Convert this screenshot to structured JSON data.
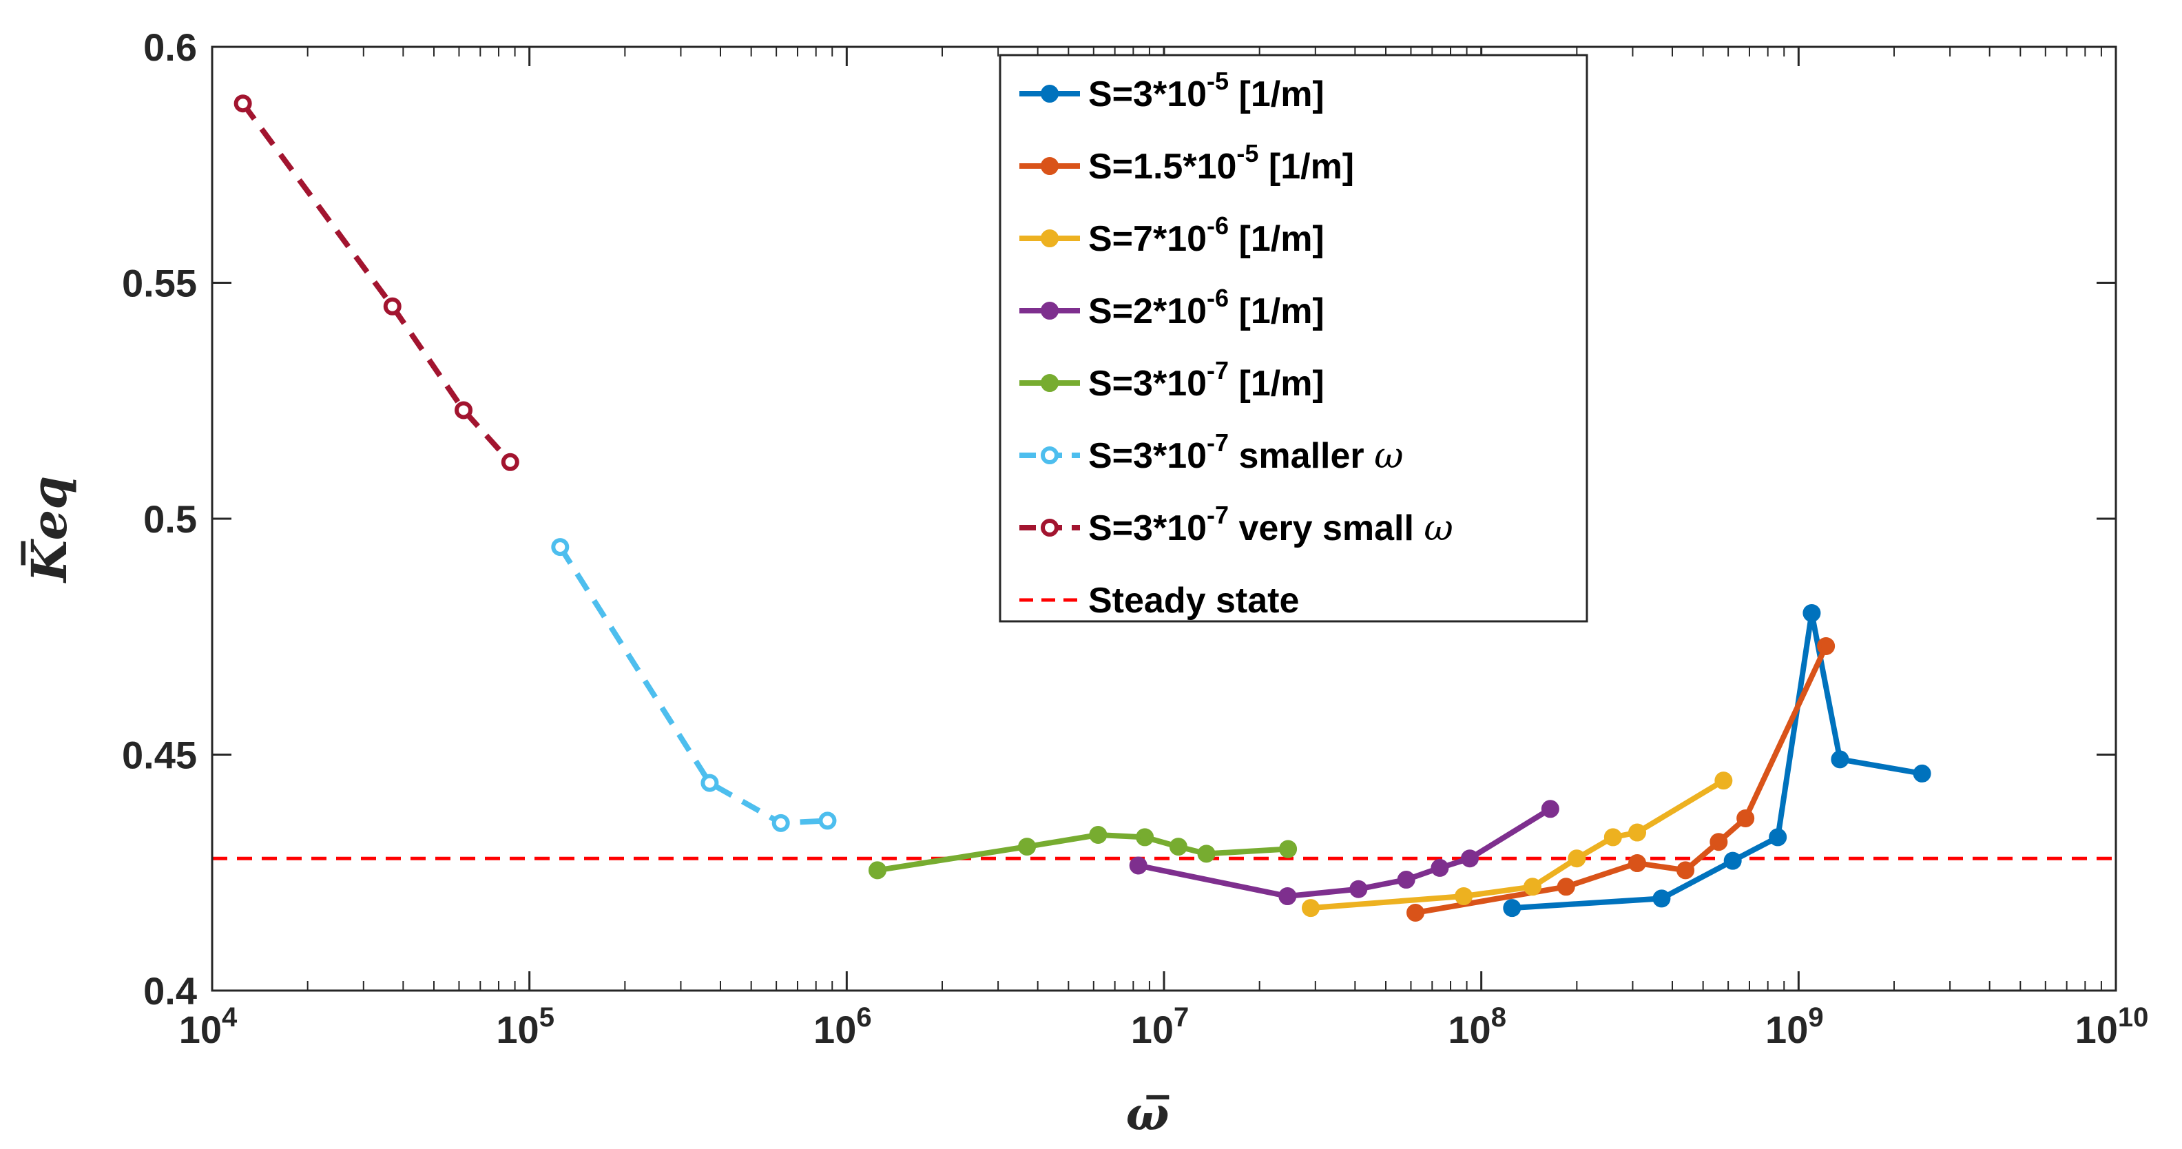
{
  "chart_data": {
    "type": "line",
    "xscale": "log",
    "xlim": [
      10000,
      10000000000
    ],
    "ylim": [
      0.4,
      0.6
    ],
    "grid": false,
    "legend_position": "top-right",
    "xlabel": "ω̅",
    "ylabel": "K̅eq",
    "x_ticks": [
      {
        "base": "10",
        "exp": "4",
        "value": 10000
      },
      {
        "base": "10",
        "exp": "5",
        "value": 100000
      },
      {
        "base": "10",
        "exp": "6",
        "value": 1000000
      },
      {
        "base": "10",
        "exp": "7",
        "value": 10000000
      },
      {
        "base": "10",
        "exp": "8",
        "value": 100000000
      },
      {
        "base": "10",
        "exp": "9",
        "value": 1000000000
      },
      {
        "base": "10",
        "exp": "10",
        "value": 10000000000
      }
    ],
    "y_ticks": [
      {
        "label": "0.4",
        "value": 0.4
      },
      {
        "label": "0.45",
        "value": 0.45
      },
      {
        "label": "0.5",
        "value": 0.5
      },
      {
        "label": "0.55",
        "value": 0.55
      },
      {
        "label": "0.6",
        "value": 0.6
      }
    ],
    "series": [
      {
        "name": "S=3*10-5 [1/m]",
        "legend": {
          "pre": "S=3*10",
          "sup": "-5",
          "post": " [1/m]",
          "greek": ""
        },
        "color": "#0072BD",
        "dashed": false,
        "marker": "o",
        "x": [
          125000000,
          370000000,
          620000000,
          860000000,
          1100000000,
          1350000000,
          2450000000
        ],
        "y": [
          0.4175,
          0.4195,
          0.4275,
          0.4325,
          0.48,
          0.449,
          0.446
        ]
      },
      {
        "name": "S=1.5*10-5 [1/m]",
        "legend": {
          "pre": "S=1.5*10",
          "sup": "-5",
          "post": " [1/m]",
          "greek": ""
        },
        "color": "#D95319",
        "dashed": false,
        "marker": "o",
        "x": [
          62000000,
          185000000,
          310000000,
          440000000,
          560000000,
          680000000,
          1220000000
        ],
        "y": [
          0.4165,
          0.422,
          0.427,
          0.4255,
          0.4315,
          0.4365,
          0.473
        ]
      },
      {
        "name": "S=7*10-6 [1/m]",
        "legend": {
          "pre": "S=7*10",
          "sup": "-6",
          "post": " [1/m]",
          "greek": ""
        },
        "color": "#EDB120",
        "dashed": false,
        "marker": "o",
        "x": [
          29000000,
          88000000,
          145000000,
          200000000,
          260000000,
          310000000,
          580000000
        ],
        "y": [
          0.4175,
          0.42,
          0.422,
          0.428,
          0.4325,
          0.4335,
          0.4445
        ]
      },
      {
        "name": "S=2*10-6 [1/m]",
        "legend": {
          "pre": "S=2*10",
          "sup": "-6",
          "post": " [1/m]",
          "greek": ""
        },
        "color": "#7E2F8E",
        "dashed": false,
        "marker": "o",
        "x": [
          8300000,
          24500000,
          41000000,
          58000000,
          74000000,
          92000000,
          165000000
        ],
        "y": [
          0.4265,
          0.42,
          0.4215,
          0.4235,
          0.426,
          0.428,
          0.4385
        ]
      },
      {
        "name": "S=3*10-7 [1/m]",
        "legend": {
          "pre": "S=3*10",
          "sup": "-7",
          "post": " [1/m]",
          "greek": ""
        },
        "color": "#77AC30",
        "dashed": false,
        "marker": "o",
        "x": [
          1250000,
          3700000,
          6200000,
          8700000,
          11100000,
          13600000,
          24600000
        ],
        "y": [
          0.4255,
          0.4305,
          0.433,
          0.4325,
          0.4305,
          0.429,
          0.43
        ]
      },
      {
        "name": "S=3*10-7 smaller ω",
        "legend": {
          "pre": "S=3*10",
          "sup": "-7",
          "post": " smaller ",
          "greek": "ω"
        },
        "color": "#4DBEEE",
        "dashed": true,
        "marker": "o",
        "x": [
          125000,
          370000,
          620000,
          870000
        ],
        "y": [
          0.494,
          0.444,
          0.4355,
          0.436
        ]
      },
      {
        "name": "S=3*10-7 very small ω",
        "legend": {
          "pre": "S=3*10",
          "sup": "-7",
          "post": " very small ",
          "greek": "ω"
        },
        "color": "#A2142F",
        "dashed": true,
        "marker": "o",
        "x": [
          12500,
          37000,
          62000,
          87000
        ],
        "y": [
          0.588,
          0.545,
          0.523,
          0.512
        ]
      }
    ],
    "reference_line": {
      "name": "Steady state",
      "y": 0.428,
      "color": "#FF0000",
      "dashed": true
    }
  }
}
